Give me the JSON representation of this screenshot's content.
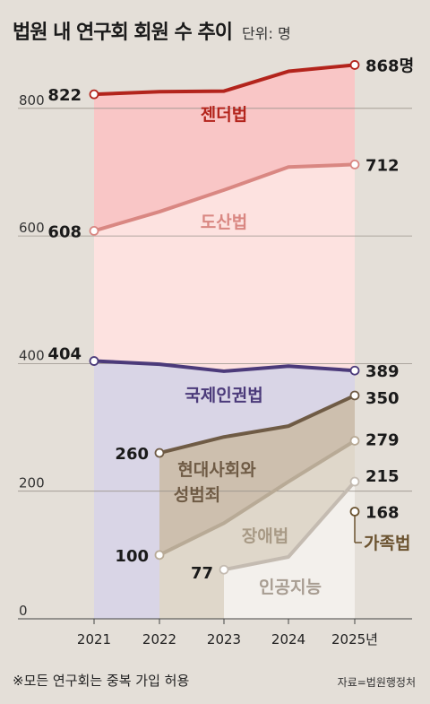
{
  "header": {
    "title": "법원 내 연구회 회원 수 추이",
    "unit": "단위: 명"
  },
  "footer": {
    "note": "※모든 연구회는 중복 가입 허용",
    "source": "자료=법원행정처"
  },
  "colors": {
    "background": "#e4dfd8",
    "gender": "#b3241c",
    "gender_fill": "#f9c6c6",
    "doshan": "#d98782",
    "doshan_fill": "#fde2e0",
    "intl": "#4b3a7a",
    "intl_fill": "#d9d5e6",
    "modern": "#6f5b45",
    "modern_fill": "#cdbfae",
    "disability": "#b8aa96",
    "disability_fill": "#dfd7ca",
    "ai": "#c4bbb1",
    "ai_fill": "#f3f0ec",
    "family": "#6b5330"
  },
  "chart_data": {
    "type": "line",
    "title": "법원 내 연구회 회원 수 추이",
    "unit": "단위: 명",
    "x": [
      "2021",
      "2022",
      "2023",
      "2024",
      "2025년"
    ],
    "ylim": [
      0,
      900
    ],
    "yticks": [
      0,
      200,
      400,
      600,
      800
    ],
    "grid": true,
    "series": [
      {
        "name": "젠더법",
        "values": [
          822,
          826,
          827,
          858,
          868
        ],
        "first_label": "822",
        "last_label": "868명",
        "colorKey": "gender"
      },
      {
        "name": "도산법",
        "values": [
          608,
          638,
          672,
          708,
          712
        ],
        "first_label": "608",
        "last_label": "712",
        "colorKey": "doshan"
      },
      {
        "name": "국제인권법",
        "values": [
          404,
          399,
          388,
          396,
          389
        ],
        "first_label": "404",
        "last_label": "389",
        "colorKey": "intl"
      },
      {
        "name": "현대사회와 성범죄",
        "values": [
          null,
          260,
          285,
          302,
          350
        ],
        "first_label": "260",
        "last_label": "350",
        "colorKey": "modern"
      },
      {
        "name": "장애법",
        "values": [
          null,
          100,
          150,
          215,
          279
        ],
        "first_label": "100",
        "last_label": "279",
        "colorKey": "disability"
      },
      {
        "name": "인공지능",
        "values": [
          null,
          null,
          77,
          97,
          215
        ],
        "first_label": "77",
        "last_label": "215",
        "colorKey": "ai"
      },
      {
        "name": "가족법",
        "values": [
          null,
          null,
          null,
          null,
          168
        ],
        "first_label": "",
        "last_label": "168",
        "colorKey": "family"
      }
    ]
  }
}
